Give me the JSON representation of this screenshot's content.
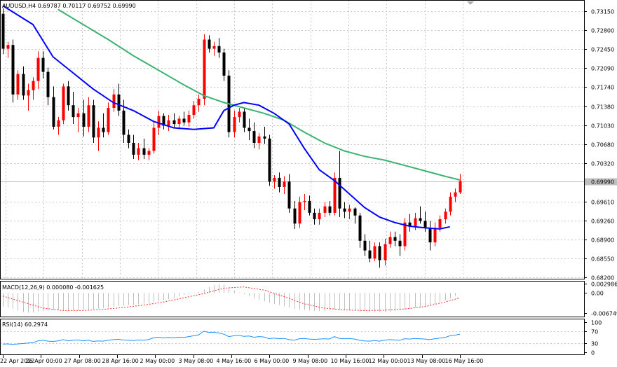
{
  "chart_data": [
    {
      "type": "candlestick",
      "title": "AUDUSD,H4 0.69787 0.70117 0.69752 0.69990",
      "symbol": "AUDUSD",
      "timeframe": "H4",
      "ylim": [
        0.682,
        0.7333
      ],
      "y_ticks": [
        "0.73150",
        "0.72800",
        "0.72450",
        "0.72090",
        "0.71740",
        "0.71380",
        "0.71030",
        "0.70680",
        "0.70320",
        "0.69610",
        "0.69260",
        "0.68900",
        "0.68550",
        "0.68200"
      ],
      "current_price": "0.69990",
      "x_tick_labels": [
        "22 Apr 2022",
        "26 Apr 00:00",
        "27 Apr 08:00",
        "28 Apr 16:00",
        "2 May 00:00",
        "3 May 08:00",
        "4 May 16:00",
        "6 May 00:00",
        "9 May 08:00",
        "10 May 16:00",
        "12 May 00:00",
        "13 May 08:00",
        "16 May 16:00"
      ],
      "colors": {
        "bull": "#ff0000",
        "bear": "#000000",
        "ma_fast": "#0000ff",
        "ma_slow": "#3cb371",
        "price_line": "#c0c0c0"
      },
      "candles": [
        {
          "o": 0.731,
          "h": 0.732,
          "l": 0.7235,
          "c": 0.7245
        },
        {
          "o": 0.7245,
          "h": 0.7258,
          "l": 0.7228,
          "c": 0.7252
        },
        {
          "o": 0.7252,
          "h": 0.7262,
          "l": 0.7145,
          "c": 0.716
        },
        {
          "o": 0.716,
          "h": 0.7205,
          "l": 0.715,
          "c": 0.7198
        },
        {
          "o": 0.7198,
          "h": 0.7212,
          "l": 0.715,
          "c": 0.7158
        },
        {
          "o": 0.7158,
          "h": 0.718,
          "l": 0.713,
          "c": 0.7168
        },
        {
          "o": 0.7168,
          "h": 0.7192,
          "l": 0.715,
          "c": 0.7185
        },
        {
          "o": 0.7185,
          "h": 0.724,
          "l": 0.717,
          "c": 0.7228
        },
        {
          "o": 0.7228,
          "h": 0.724,
          "l": 0.719,
          "c": 0.7202
        },
        {
          "o": 0.7202,
          "h": 0.721,
          "l": 0.714,
          "c": 0.7155
        },
        {
          "o": 0.7155,
          "h": 0.7175,
          "l": 0.7095,
          "c": 0.71
        },
        {
          "o": 0.71,
          "h": 0.7118,
          "l": 0.7085,
          "c": 0.7112
        },
        {
          "o": 0.7112,
          "h": 0.718,
          "l": 0.7105,
          "c": 0.7175
        },
        {
          "o": 0.7175,
          "h": 0.7185,
          "l": 0.713,
          "c": 0.714
        },
        {
          "o": 0.714,
          "h": 0.7165,
          "l": 0.7105,
          "c": 0.7118
        },
        {
          "o": 0.7118,
          "h": 0.7135,
          "l": 0.709,
          "c": 0.7125
        },
        {
          "o": 0.7125,
          "h": 0.715,
          "l": 0.7082,
          "c": 0.71
        },
        {
          "o": 0.71,
          "h": 0.7155,
          "l": 0.709,
          "c": 0.714
        },
        {
          "o": 0.714,
          "h": 0.715,
          "l": 0.707,
          "c": 0.708
        },
        {
          "o": 0.708,
          "h": 0.711,
          "l": 0.7055,
          "c": 0.7098
        },
        {
          "o": 0.7098,
          "h": 0.7125,
          "l": 0.708,
          "c": 0.709
        },
        {
          "o": 0.709,
          "h": 0.7145,
          "l": 0.7085,
          "c": 0.7135
        },
        {
          "o": 0.7135,
          "h": 0.717,
          "l": 0.7128,
          "c": 0.716
        },
        {
          "o": 0.716,
          "h": 0.718,
          "l": 0.712,
          "c": 0.713
        },
        {
          "o": 0.713,
          "h": 0.715,
          "l": 0.707,
          "c": 0.7085
        },
        {
          "o": 0.7085,
          "h": 0.7095,
          "l": 0.706,
          "c": 0.707
        },
        {
          "o": 0.707,
          "h": 0.7085,
          "l": 0.704,
          "c": 0.7048
        },
        {
          "o": 0.7048,
          "h": 0.707,
          "l": 0.7038,
          "c": 0.706
        },
        {
          "o": 0.706,
          "h": 0.7078,
          "l": 0.704,
          "c": 0.7048
        },
        {
          "o": 0.7048,
          "h": 0.706,
          "l": 0.7038,
          "c": 0.7055
        },
        {
          "o": 0.7055,
          "h": 0.711,
          "l": 0.705,
          "c": 0.7098
        },
        {
          "o": 0.7098,
          "h": 0.713,
          "l": 0.7085,
          "c": 0.712
        },
        {
          "o": 0.712,
          "h": 0.7125,
          "l": 0.7095,
          "c": 0.7102
        },
        {
          "o": 0.7102,
          "h": 0.7122,
          "l": 0.7092,
          "c": 0.7112
        },
        {
          "o": 0.7112,
          "h": 0.7125,
          "l": 0.7098,
          "c": 0.7105
        },
        {
          "o": 0.7105,
          "h": 0.712,
          "l": 0.7095,
          "c": 0.7115
        },
        {
          "o": 0.7115,
          "h": 0.7128,
          "l": 0.7102,
          "c": 0.7108
        },
        {
          "o": 0.7108,
          "h": 0.713,
          "l": 0.71,
          "c": 0.7122
        },
        {
          "o": 0.7122,
          "h": 0.7148,
          "l": 0.7115,
          "c": 0.714
        },
        {
          "o": 0.714,
          "h": 0.716,
          "l": 0.7128,
          "c": 0.7152
        },
        {
          "o": 0.7152,
          "h": 0.7272,
          "l": 0.714,
          "c": 0.7262
        },
        {
          "o": 0.7262,
          "h": 0.727,
          "l": 0.7238,
          "c": 0.7245
        },
        {
          "o": 0.7245,
          "h": 0.7258,
          "l": 0.7232,
          "c": 0.725
        },
        {
          "o": 0.725,
          "h": 0.7265,
          "l": 0.7228,
          "c": 0.7238
        },
        {
          "o": 0.7238,
          "h": 0.7245,
          "l": 0.7185,
          "c": 0.7195
        },
        {
          "o": 0.7195,
          "h": 0.7205,
          "l": 0.708,
          "c": 0.709
        },
        {
          "o": 0.709,
          "h": 0.713,
          "l": 0.708,
          "c": 0.7118
        },
        {
          "o": 0.7118,
          "h": 0.7135,
          "l": 0.7108,
          "c": 0.7128
        },
        {
          "o": 0.7128,
          "h": 0.7135,
          "l": 0.709,
          "c": 0.7098
        },
        {
          "o": 0.7098,
          "h": 0.7115,
          "l": 0.7075,
          "c": 0.7092
        },
        {
          "o": 0.7092,
          "h": 0.7108,
          "l": 0.706,
          "c": 0.707
        },
        {
          "o": 0.707,
          "h": 0.7088,
          "l": 0.7058,
          "c": 0.7082
        },
        {
          "o": 0.7082,
          "h": 0.71,
          "l": 0.7068,
          "c": 0.7078
        },
        {
          "o": 0.7078,
          "h": 0.7085,
          "l": 0.699,
          "c": 0.6998
        },
        {
          "o": 0.6998,
          "h": 0.701,
          "l": 0.6985,
          "c": 0.7005
        },
        {
          "o": 0.7005,
          "h": 0.7015,
          "l": 0.6978,
          "c": 0.6988
        },
        {
          "o": 0.6988,
          "h": 0.7008,
          "l": 0.6975,
          "c": 0.6998
        },
        {
          "o": 0.6998,
          "h": 0.7012,
          "l": 0.694,
          "c": 0.6948
        },
        {
          "o": 0.6948,
          "h": 0.6962,
          "l": 0.691,
          "c": 0.692
        },
        {
          "o": 0.692,
          "h": 0.697,
          "l": 0.6912,
          "c": 0.696
        },
        {
          "o": 0.696,
          "h": 0.6975,
          "l": 0.6945,
          "c": 0.6962
        },
        {
          "o": 0.6962,
          "h": 0.6972,
          "l": 0.6935,
          "c": 0.694
        },
        {
          "o": 0.694,
          "h": 0.6948,
          "l": 0.6918,
          "c": 0.6928
        },
        {
          "o": 0.6928,
          "h": 0.6948,
          "l": 0.6918,
          "c": 0.694
        },
        {
          "o": 0.694,
          "h": 0.696,
          "l": 0.6932,
          "c": 0.6952
        },
        {
          "o": 0.6952,
          "h": 0.6962,
          "l": 0.6935,
          "c": 0.694
        },
        {
          "o": 0.694,
          "h": 0.7015,
          "l": 0.6935,
          "c": 0.7005
        },
        {
          "o": 0.7005,
          "h": 0.7055,
          "l": 0.6932,
          "c": 0.6948
        },
        {
          "o": 0.6948,
          "h": 0.696,
          "l": 0.693,
          "c": 0.6942
        },
        {
          "o": 0.6942,
          "h": 0.6955,
          "l": 0.6928,
          "c": 0.6948
        },
        {
          "o": 0.6948,
          "h": 0.695,
          "l": 0.692,
          "c": 0.6935
        },
        {
          "o": 0.6935,
          "h": 0.694,
          "l": 0.6875,
          "c": 0.6888
        },
        {
          "o": 0.6888,
          "h": 0.69,
          "l": 0.686,
          "c": 0.687
        },
        {
          "o": 0.687,
          "h": 0.6888,
          "l": 0.6848,
          "c": 0.6855
        },
        {
          "o": 0.6855,
          "h": 0.6885,
          "l": 0.685,
          "c": 0.6878
        },
        {
          "o": 0.6878,
          "h": 0.6885,
          "l": 0.6838,
          "c": 0.6852
        },
        {
          "o": 0.6852,
          "h": 0.6892,
          "l": 0.6842,
          "c": 0.6882
        },
        {
          "o": 0.6882,
          "h": 0.6905,
          "l": 0.6875,
          "c": 0.6895
        },
        {
          "o": 0.6895,
          "h": 0.6905,
          "l": 0.6878,
          "c": 0.6888
        },
        {
          "o": 0.6888,
          "h": 0.69,
          "l": 0.686,
          "c": 0.6878
        },
        {
          "o": 0.6878,
          "h": 0.693,
          "l": 0.687,
          "c": 0.6922
        },
        {
          "o": 0.6922,
          "h": 0.6938,
          "l": 0.6905,
          "c": 0.6915
        },
        {
          "o": 0.6915,
          "h": 0.694,
          "l": 0.6908,
          "c": 0.693
        },
        {
          "o": 0.693,
          "h": 0.6952,
          "l": 0.692,
          "c": 0.6925
        },
        {
          "o": 0.6925,
          "h": 0.6942,
          "l": 0.6905,
          "c": 0.6912
        },
        {
          "o": 0.6912,
          "h": 0.6925,
          "l": 0.687,
          "c": 0.6885
        },
        {
          "o": 0.6885,
          "h": 0.6922,
          "l": 0.6878,
          "c": 0.6912
        },
        {
          "o": 0.6912,
          "h": 0.6935,
          "l": 0.6905,
          "c": 0.6928
        },
        {
          "o": 0.6928,
          "h": 0.6948,
          "l": 0.692,
          "c": 0.6942
        },
        {
          "o": 0.6942,
          "h": 0.6978,
          "l": 0.6935,
          "c": 0.697
        },
        {
          "o": 0.697,
          "h": 0.6985,
          "l": 0.696,
          "c": 0.6978
        },
        {
          "o": 0.6978,
          "h": 0.7012,
          "l": 0.6975,
          "c": 0.6999
        }
      ],
      "ma_fast": [
        [
          0,
          0.7325
        ],
        [
          6,
          0.729
        ],
        [
          10,
          0.723
        ],
        [
          14,
          0.72
        ],
        [
          18,
          0.717
        ],
        [
          22,
          0.7145
        ],
        [
          26,
          0.713
        ],
        [
          30,
          0.711
        ],
        [
          34,
          0.7098
        ],
        [
          38,
          0.7095
        ],
        [
          42,
          0.7098
        ],
        [
          44,
          0.713
        ],
        [
          46,
          0.714
        ],
        [
          48,
          0.7145
        ],
        [
          51,
          0.714
        ],
        [
          54,
          0.7125
        ],
        [
          57,
          0.7105
        ],
        [
          60,
          0.706
        ],
        [
          63,
          0.702
        ],
        [
          66,
          0.7
        ],
        [
          69,
          0.6975
        ],
        [
          72,
          0.695
        ],
        [
          75,
          0.6932
        ],
        [
          78,
          0.6922
        ],
        [
          81,
          0.6915
        ],
        [
          84,
          0.6912
        ],
        [
          87,
          0.691
        ],
        [
          89,
          0.6914
        ]
      ],
      "ma_slow": [
        [
          11,
          0.7318
        ],
        [
          16,
          0.729
        ],
        [
          21,
          0.7262
        ],
        [
          26,
          0.7232
        ],
        [
          31,
          0.7205
        ],
        [
          36,
          0.7178
        ],
        [
          40,
          0.7158
        ],
        [
          44,
          0.7145
        ],
        [
          48,
          0.7135
        ],
        [
          52,
          0.7125
        ],
        [
          56,
          0.7112
        ],
        [
          60,
          0.709
        ],
        [
          64,
          0.707
        ],
        [
          68,
          0.7055
        ],
        [
          72,
          0.7045
        ],
        [
          76,
          0.7038
        ],
        [
          80,
          0.7028
        ],
        [
          84,
          0.7018
        ],
        [
          88,
          0.7008
        ],
        [
          91,
          0.7001
        ]
      ]
    },
    {
      "type": "histogram",
      "title": "MACD(12,26,9) 0.000080 -0.001625",
      "y_ticks": [
        "0.002986",
        "0.00",
        "-0.006749"
      ],
      "ylim": [
        -0.0071,
        0.0031
      ],
      "histogram": [
        -0.0045,
        -0.0048,
        -0.0052,
        -0.0058,
        -0.0063,
        -0.0065,
        -0.0065,
        -0.0062,
        -0.006,
        -0.0058,
        -0.0056,
        -0.0056,
        -0.0057,
        -0.0058,
        -0.0058,
        -0.0057,
        -0.0056,
        -0.0055,
        -0.0053,
        -0.0052,
        -0.005,
        -0.0048,
        -0.0045,
        -0.0043,
        -0.0041,
        -0.004,
        -0.0039,
        -0.0037,
        -0.0035,
        -0.0033,
        -0.003,
        -0.0027,
        -0.0024,
        -0.002,
        -0.0015,
        -0.001,
        -0.0006,
        -0.0003,
        0.0,
        0.0004,
        0.0012,
        0.002,
        0.0026,
        0.003,
        0.0028,
        0.0018,
        0.0008,
        0.0002,
        -0.0004,
        -0.001,
        -0.0016,
        -0.0022,
        -0.0027,
        -0.0032,
        -0.0036,
        -0.004,
        -0.0044,
        -0.0048,
        -0.0052,
        -0.0055,
        -0.0056,
        -0.0058,
        -0.0059,
        -0.006,
        -0.006,
        -0.0058,
        -0.0056,
        -0.0056,
        -0.0057,
        -0.0058,
        -0.0059,
        -0.006,
        -0.0061,
        -0.0062,
        -0.0063,
        -0.0063,
        -0.0062,
        -0.0061,
        -0.0059,
        -0.0057,
        -0.0055,
        -0.0052,
        -0.0049,
        -0.0046,
        -0.0043,
        -0.004,
        -0.0036,
        -0.003,
        -0.0024,
        -0.0018,
        -0.001,
        0.0001
      ],
      "signal": [
        [
          0,
          -0.001
        ],
        [
          4,
          -0.003
        ],
        [
          8,
          -0.005
        ],
        [
          12,
          -0.0058
        ],
        [
          16,
          -0.0058
        ],
        [
          20,
          -0.0054
        ],
        [
          24,
          -0.0048
        ],
        [
          28,
          -0.004
        ],
        [
          32,
          -0.003
        ],
        [
          36,
          -0.0016
        ],
        [
          40,
          -0.0002
        ],
        [
          44,
          0.0016
        ],
        [
          48,
          0.002
        ],
        [
          52,
          0.001
        ],
        [
          56,
          -0.0012
        ],
        [
          60,
          -0.0036
        ],
        [
          64,
          -0.005
        ],
        [
          68,
          -0.0056
        ],
        [
          72,
          -0.0058
        ],
        [
          76,
          -0.0057
        ],
        [
          80,
          -0.0053
        ],
        [
          84,
          -0.0045
        ],
        [
          88,
          -0.003
        ],
        [
          91,
          -0.0016
        ]
      ]
    },
    {
      "type": "line",
      "title": "RSI(14) 60.2974",
      "y_ticks": [
        "100",
        "70",
        "30",
        "0"
      ],
      "ylim": [
        0,
        100
      ],
      "levels": [
        70,
        30
      ],
      "values": [
        27,
        28,
        26,
        28,
        29,
        31,
        32,
        38,
        40,
        37,
        36,
        38,
        42,
        38,
        40,
        41,
        38,
        40,
        36,
        38,
        37,
        40,
        42,
        43,
        41,
        40,
        39,
        41,
        40,
        42,
        48,
        50,
        48,
        49,
        48,
        50,
        49,
        52,
        55,
        58,
        70,
        66,
        67,
        64,
        60,
        52,
        55,
        56,
        53,
        54,
        50,
        52,
        51,
        45,
        47,
        45,
        46,
        42,
        40,
        45,
        46,
        44,
        43,
        44,
        45,
        44,
        52,
        46,
        45,
        46,
        44,
        40,
        38,
        37,
        39,
        37,
        40,
        42,
        41,
        40,
        45,
        44,
        46,
        45,
        44,
        42,
        45,
        47,
        49,
        55,
        57,
        60
      ]
    }
  ]
}
